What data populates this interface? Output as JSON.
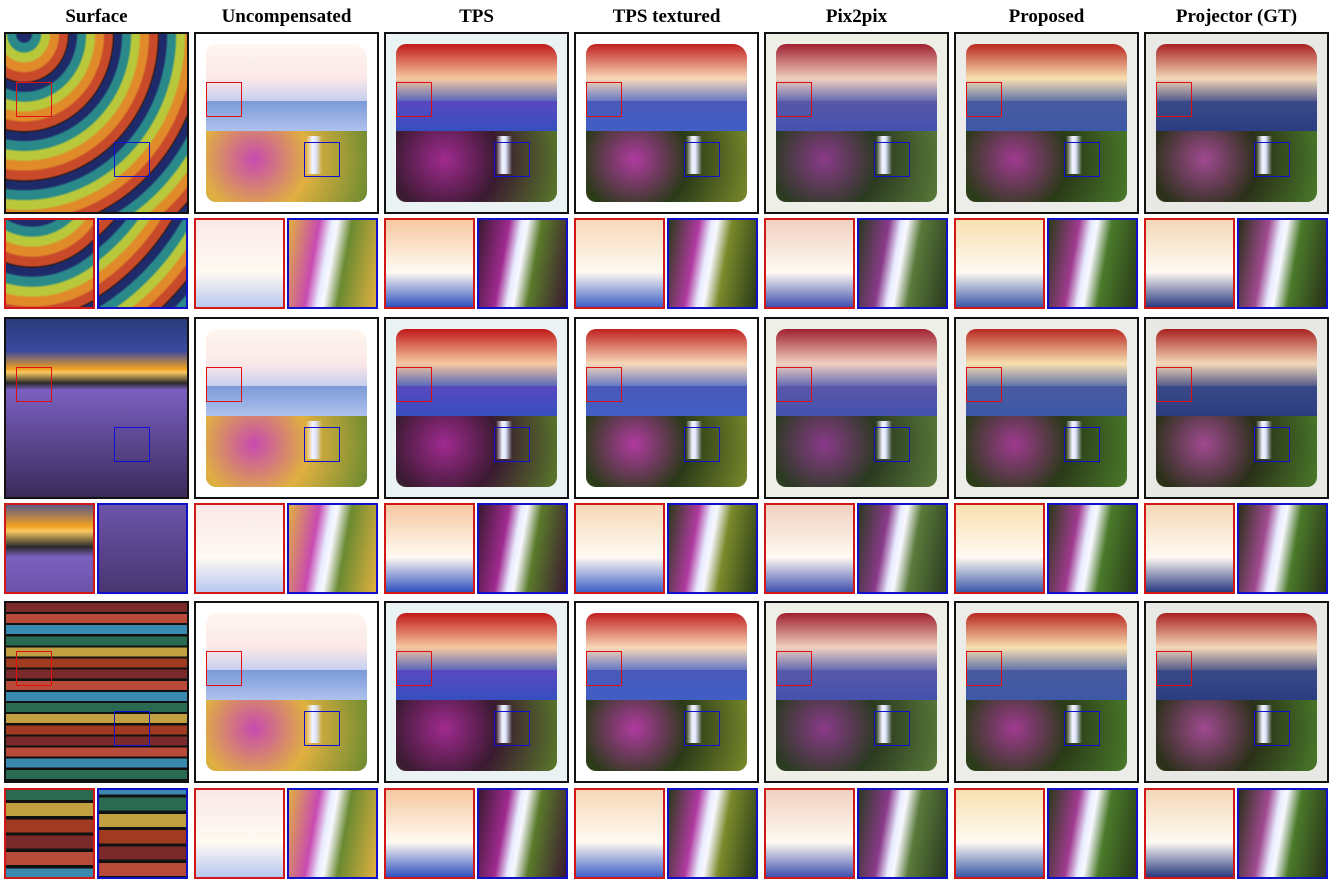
{
  "columns": [
    {
      "key": "surface",
      "title": "Surface"
    },
    {
      "key": "uncompensated",
      "title": "Uncompensated"
    },
    {
      "key": "tps",
      "title": "TPS"
    },
    {
      "key": "tps_textured",
      "title": "TPS textured"
    },
    {
      "key": "pix2pix",
      "title": "Pix2pix"
    },
    {
      "key": "proposed",
      "title": "Proposed"
    },
    {
      "key": "projector_gt",
      "title": "Projector (GT)"
    }
  ],
  "rows": [
    {
      "surface": "swirl-stripes",
      "surface_colors": [
        "#1f2a6b",
        "#2a8a8a",
        "#b8c83a",
        "#e08a2a",
        "#c84a2a"
      ]
    },
    {
      "surface": "lavender-field",
      "surface_colors": [
        "#2a3a7a",
        "#f0a020",
        "#7a60c0",
        "#3a2a5a"
      ]
    },
    {
      "surface": "horizontal-stripes",
      "surface_colors": [
        "#7a2a2a",
        "#b84a3a",
        "#3a8ab0",
        "#2a6a50",
        "#c0a040",
        "#a03a20"
      ]
    }
  ],
  "methods": {
    "uncompensated": {
      "frame": "#ffffff",
      "sky": [
        "#fff7f0",
        "#fbe8e8",
        "#b8c8f0"
      ],
      "mtn": "#7a9ad8",
      "fld": [
        "#c84ab0",
        "#e0b040",
        "#6a8a30"
      ]
    },
    "tps": {
      "frame": "#eaf2f4",
      "sky": [
        "#c01818",
        "#f6c8a0",
        "#3050c0"
      ],
      "mtn": "#5a48c0",
      "fld": [
        "#a02a90",
        "#3a1a30",
        "#5a7a2a"
      ]
    },
    "tps_textured": {
      "frame": "#ffffff",
      "sky": [
        "#c02020",
        "#f8d8b8",
        "#4060c8"
      ],
      "mtn": "#4a58b8",
      "fld": [
        "#b03aa0",
        "#2a3a18",
        "#7a8a2a"
      ]
    },
    "pix2pix": {
      "frame": "#eef0e8",
      "sky": [
        "#a02030",
        "#f0d0c0",
        "#4050b0"
      ],
      "mtn": "#5a58a8",
      "fld": [
        "#8a3a8a",
        "#2a3a20",
        "#5a7a3a"
      ]
    },
    "proposed": {
      "frame": "#ecece8",
      "sky": [
        "#b82820",
        "#f8e0b0",
        "#3a58a8"
      ],
      "mtn": "#4a5aa0",
      "fld": [
        "#a03a90",
        "#2a3a18",
        "#4a7a2a"
      ]
    },
    "projector_gt": {
      "frame": "#e8e8e4",
      "sky": [
        "#a82020",
        "#f4d8b8",
        "#2a3a80"
      ],
      "mtn": "#3a4a88",
      "fld": [
        "#a04a90",
        "#2a3018",
        "#4a7a2a"
      ]
    }
  },
  "icons": {
    "region_red": "red-roi-box",
    "region_blue": "blue-roi-box"
  },
  "colors": {
    "roi_red": "#d01818",
    "roi_blue": "#1010c8",
    "frame_border": "#111111"
  }
}
